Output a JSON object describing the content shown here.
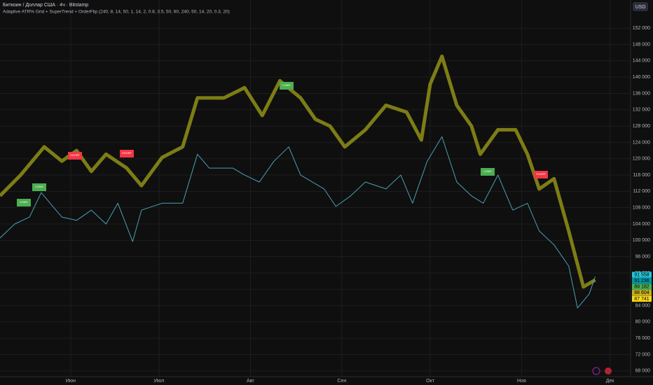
{
  "chart_data": {
    "type": "line",
    "title": "Биткоин / Доллар США · 4ч · Bitstamp",
    "subtitle": "Adaptive ATR% Grid + SuperTrend + OrderFlip (240, 8, 14, 50, 1, 14, 2, 0.8, 3.5, 50, 60, 240, 50, 14, 20, 0.3, 20)",
    "currency": "USD",
    "xlim": [
      0,
      214
    ],
    "xticks": [
      {
        "value": 24,
        "label": "Июн"
      },
      {
        "value": 54,
        "label": "Июл"
      },
      {
        "value": 85,
        "label": "Авг"
      },
      {
        "value": 116,
        "label": "Сен"
      },
      {
        "value": 146,
        "label": "Окт"
      },
      {
        "value": 177,
        "label": "Ноя"
      },
      {
        "value": 207,
        "label": "Дек"
      }
    ],
    "ylim": [
      66600,
      158900
    ],
    "yticks": [
      {
        "value": 68000,
        "label": "68 000"
      },
      {
        "value": 72000,
        "label": "72 000"
      },
      {
        "value": 76000,
        "label": "76 000"
      },
      {
        "value": 80000,
        "label": "80 000"
      },
      {
        "value": 84000,
        "label": "84 000"
      },
      {
        "value": 88000,
        "label": "88 000"
      },
      {
        "value": 92000,
        "label": "92 000"
      },
      {
        "value": 96000,
        "label": "96 000"
      },
      {
        "value": 100000,
        "label": "100 000"
      },
      {
        "value": 104000,
        "label": "104 000"
      },
      {
        "value": 108000,
        "label": "108 000"
      },
      {
        "value": 112000,
        "label": "112 000"
      },
      {
        "value": 116000,
        "label": "116 000"
      },
      {
        "value": 120000,
        "label": "120 000"
      },
      {
        "value": 124000,
        "label": "124 000"
      },
      {
        "value": 128000,
        "label": "128 000"
      },
      {
        "value": 132000,
        "label": "132 000"
      },
      {
        "value": 136000,
        "label": "136 000"
      },
      {
        "value": 140000,
        "label": "140 000"
      },
      {
        "value": 144000,
        "label": "144 000"
      },
      {
        "value": 148000,
        "label": "148 000"
      },
      {
        "value": 152000,
        "label": "152 000"
      }
    ],
    "grid": true,
    "series": [
      {
        "color": "#7d7d16",
        "width": 5,
        "x": [
          0,
          7,
          15,
          21,
          26,
          31,
          36,
          43,
          48,
          55,
          62,
          67,
          76,
          83,
          89,
          95,
          102,
          107,
          112,
          117,
          124,
          131,
          138,
          143,
          146,
          150,
          155,
          160,
          163,
          169,
          175,
          179,
          183,
          188,
          193,
          198,
          202
        ],
        "values": [
          110900,
          116000,
          122900,
          119400,
          122000,
          116900,
          121100,
          117700,
          113400,
          120300,
          122900,
          134900,
          134900,
          137400,
          130600,
          139100,
          134900,
          129700,
          128000,
          122900,
          127100,
          133100,
          131400,
          124600,
          138300,
          145100,
          133100,
          128000,
          121100,
          127100,
          127100,
          121100,
          112600,
          115100,
          102300,
          88600,
          90300
        ]
      },
      {
        "color": "#4a9fb5",
        "width": 1,
        "x": [
          0,
          5,
          10,
          14,
          17,
          21,
          26,
          31,
          36,
          40,
          45,
          48,
          55,
          62,
          67,
          71,
          79,
          83,
          88,
          93,
          98,
          102,
          110,
          114,
          119,
          124,
          131,
          136,
          140,
          145,
          150,
          155,
          160,
          164,
          169,
          174,
          179,
          183,
          188,
          193,
          196,
          200,
          202
        ],
        "values": [
          100570,
          104000,
          105700,
          111700,
          109100,
          105700,
          104900,
          107400,
          104000,
          109100,
          99700,
          107400,
          109100,
          109100,
          121100,
          117700,
          117700,
          116000,
          114300,
          119400,
          122900,
          116000,
          112600,
          108300,
          110900,
          114300,
          112600,
          116000,
          109100,
          119400,
          125400,
          114300,
          110900,
          109100,
          116000,
          107400,
          109100,
          102300,
          98900,
          93700,
          83400,
          86900,
          91100
        ]
      }
    ],
    "signals": [
      {
        "label": "LONG",
        "color": "#4caf50"
      },
      {
        "label": "LONG",
        "color": "#4caf50"
      },
      {
        "label": "SHORT",
        "color": "#f23645"
      },
      {
        "label": "SHORT",
        "color": "#f23645"
      },
      {
        "label": "LONG",
        "color": "#4caf50"
      },
      {
        "label": "LONG",
        "color": "#4caf50"
      },
      {
        "label": "SHORT",
        "color": "#f23645"
      }
    ],
    "price_labels": [
      {
        "value": 91558,
        "label": "91 558",
        "color": "#26c6da"
      },
      {
        "value": 91236,
        "label": "91 236",
        "color": "#0097a7"
      },
      {
        "value": 89182,
        "label": "89 182",
        "color": "#4caf50"
      },
      {
        "value": 88604,
        "label": "88 604",
        "color": "#c6b020"
      },
      {
        "value": 87741,
        "label": "87 741",
        "color": "#f9d71c"
      }
    ]
  }
}
